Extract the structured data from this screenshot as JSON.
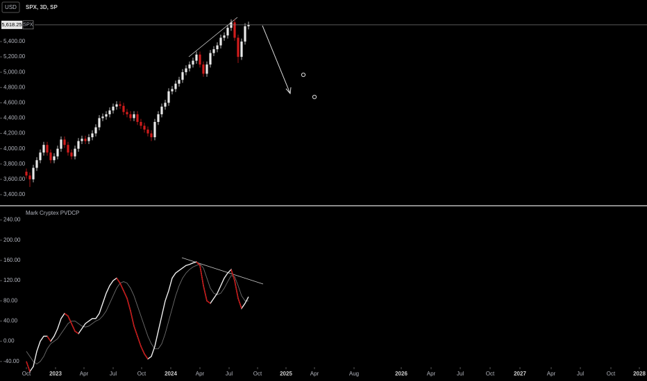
{
  "chart_data": [
    {
      "type": "candlestick",
      "title": "SPX, 3D, SP",
      "currency": "USD",
      "price_label": {
        "value": 5618.25,
        "label": "5,618.25",
        "name": "SPX"
      },
      "up_color": "#e8e8e8",
      "down_color": "#d01c1c",
      "open": [
        3700,
        3650,
        3600,
        3750,
        3850,
        3950,
        4050,
        3950,
        3850,
        3900,
        4000,
        4120,
        4050,
        3950,
        3900,
        4000,
        4100,
        4130,
        4100,
        4150,
        4200,
        4280,
        4400,
        4420,
        4450,
        4500,
        4550,
        4580,
        4560,
        4480,
        4450,
        4400,
        4450,
        4350,
        4300,
        4250,
        4200,
        4150,
        4350,
        4450,
        4550,
        4600,
        4750,
        4780,
        4850,
        4900,
        5000,
        5050,
        5100,
        5150,
        5230,
        5100,
        4980,
        5100,
        5250,
        5300,
        5350,
        5450,
        5480,
        5580,
        5650,
        5450,
        5200,
        5400,
        5600
      ],
      "high": [
        3740,
        3690,
        3790,
        3890,
        3990,
        4090,
        4090,
        3990,
        3940,
        4040,
        4160,
        4160,
        4090,
        3990,
        4040,
        4140,
        4170,
        4170,
        4190,
        4240,
        4320,
        4440,
        4460,
        4490,
        4540,
        4590,
        4620,
        4620,
        4600,
        4520,
        4490,
        4490,
        4490,
        4390,
        4340,
        4290,
        4240,
        4390,
        4490,
        4590,
        4640,
        4790,
        4820,
        4890,
        4940,
        5040,
        5090,
        5140,
        5190,
        5270,
        5270,
        5140,
        5140,
        5290,
        5340,
        5390,
        5490,
        5520,
        5620,
        5690,
        5690,
        5490,
        5440,
        5640,
        5660
      ],
      "low": [
        3610,
        3500,
        3560,
        3710,
        3810,
        3910,
        3910,
        3810,
        3810,
        3860,
        3960,
        4010,
        3910,
        3860,
        3860,
        3960,
        4060,
        4060,
        4060,
        4110,
        4160,
        4240,
        4360,
        4380,
        4410,
        4460,
        4510,
        4520,
        4440,
        4410,
        4360,
        4360,
        4310,
        4260,
        4210,
        4160,
        4100,
        4110,
        4310,
        4410,
        4510,
        4560,
        4710,
        4740,
        4810,
        4860,
        4960,
        5010,
        5060,
        5110,
        5060,
        4940,
        4940,
        5060,
        5210,
        5260,
        5310,
        5410,
        5440,
        5540,
        5410,
        5120,
        5160,
        5360,
        5560
      ],
      "close": [
        3650,
        3600,
        3750,
        3850,
        3950,
        4050,
        3950,
        3850,
        3900,
        4000,
        4120,
        4050,
        3950,
        3900,
        4000,
        4100,
        4130,
        4100,
        4150,
        4200,
        4280,
        4400,
        4420,
        4450,
        4500,
        4550,
        4580,
        4560,
        4480,
        4450,
        4400,
        4450,
        4350,
        4300,
        4250,
        4200,
        4150,
        4350,
        4450,
        4550,
        4600,
        4750,
        4780,
        4850,
        4900,
        5000,
        5050,
        5100,
        5150,
        5230,
        5100,
        4980,
        5100,
        5250,
        5300,
        5350,
        5450,
        5480,
        5580,
        5650,
        5450,
        5200,
        5400,
        5600,
        5618.25
      ],
      "xlim": [
        -7.6,
        178.8
      ],
      "ylim": [
        3264,
        5943
      ],
      "yticks": [
        {
          "value": 3400,
          "label": "3,400.00"
        },
        {
          "value": 3600,
          "label": "3,600.00"
        },
        {
          "value": 3800,
          "label": "3,800.00"
        },
        {
          "value": 4000,
          "label": "4,000.00"
        },
        {
          "value": 4200,
          "label": "4,200.00"
        },
        {
          "value": 4400,
          "label": "4,400.00"
        },
        {
          "value": 4600,
          "label": "4,600.00"
        },
        {
          "value": 4800,
          "label": "4,800.00"
        },
        {
          "value": 5000,
          "label": "5,000.00"
        },
        {
          "value": 5200,
          "label": "5,200.00"
        },
        {
          "value": 5400,
          "label": "5,400.00"
        }
      ]
    },
    {
      "type": "line",
      "title": "Mark Cryptex PVDCP",
      "series": [
        {
          "color": "#f0f0f0",
          "down_color": "#c81010",
          "values": [
            -40,
            -60,
            -50,
            -20,
            0,
            10,
            10,
            0,
            10,
            25,
            45,
            55,
            50,
            35,
            20,
            15,
            25,
            35,
            40,
            45,
            45,
            55,
            75,
            95,
            110,
            120,
            125,
            115,
            100,
            85,
            60,
            30,
            10,
            -10,
            -25,
            -35,
            -30,
            -10,
            20,
            50,
            80,
            100,
            125,
            135,
            140,
            145,
            150,
            152,
            155,
            157,
            150,
            110,
            80,
            75,
            85,
            95,
            110,
            125,
            135,
            142,
            120,
            85,
            65,
            75,
            88
          ]
        },
        {
          "color": "#6e6e6e",
          "values": [
            -20,
            -30,
            -40,
            -45,
            -40,
            -30,
            -15,
            -5,
            0,
            5,
            15,
            25,
            35,
            40,
            40,
            35,
            30,
            28,
            30,
            35,
            40,
            43,
            50,
            60,
            75,
            90,
            105,
            115,
            118,
            115,
            105,
            90,
            70,
            50,
            30,
            10,
            -5,
            -15,
            -15,
            -5,
            15,
            40,
            65,
            90,
            110,
            125,
            135,
            142,
            147,
            150,
            153,
            145,
            125,
            105,
            95,
            92,
            95,
            105,
            118,
            130,
            128,
            110,
            90,
            80,
            80
          ]
        }
      ],
      "xlim": [
        -7.6,
        178.8
      ],
      "xticks": [
        {
          "value": 0,
          "label": "Oct"
        },
        {
          "value": 8.4,
          "label": "2023"
        },
        {
          "value": 16.6,
          "label": "Apr"
        },
        {
          "value": 25,
          "label": "Jul"
        },
        {
          "value": 33.2,
          "label": "Oct"
        },
        {
          "value": 41.6,
          "label": "2024"
        },
        {
          "value": 50,
          "label": "Apr"
        },
        {
          "value": 58.4,
          "label": "Jul"
        },
        {
          "value": 66.6,
          "label": "Oct"
        },
        {
          "value": 74.8,
          "label": "2025"
        },
        {
          "value": 83,
          "label": "Apr"
        },
        {
          "value": 94.4,
          "label": "Aug"
        },
        {
          "value": 108,
          "label": "2026"
        },
        {
          "value": 116.6,
          "label": "Apr"
        },
        {
          "value": 125,
          "label": "Jul"
        },
        {
          "value": 133.6,
          "label": "Oct"
        },
        {
          "value": 142.2,
          "label": "2027"
        },
        {
          "value": 151.2,
          "label": "Apr"
        },
        {
          "value": 159.6,
          "label": "Jul"
        },
        {
          "value": 168.4,
          "label": "Oct"
        },
        {
          "value": 176.6,
          "label": "2028"
        }
      ],
      "ylim": [
        -48.5,
        266.8
      ],
      "yticks": [
        {
          "value": -40,
          "label": "-40.00"
        },
        {
          "value": 0,
          "label": "0.00"
        },
        {
          "value": 40,
          "label": "40.00"
        },
        {
          "value": 80,
          "label": "80.00"
        },
        {
          "value": 120,
          "label": "120.00"
        },
        {
          "value": 160,
          "label": "160.00"
        },
        {
          "value": 200,
          "label": "200.00"
        },
        {
          "value": 240,
          "label": "240.00"
        }
      ]
    }
  ]
}
